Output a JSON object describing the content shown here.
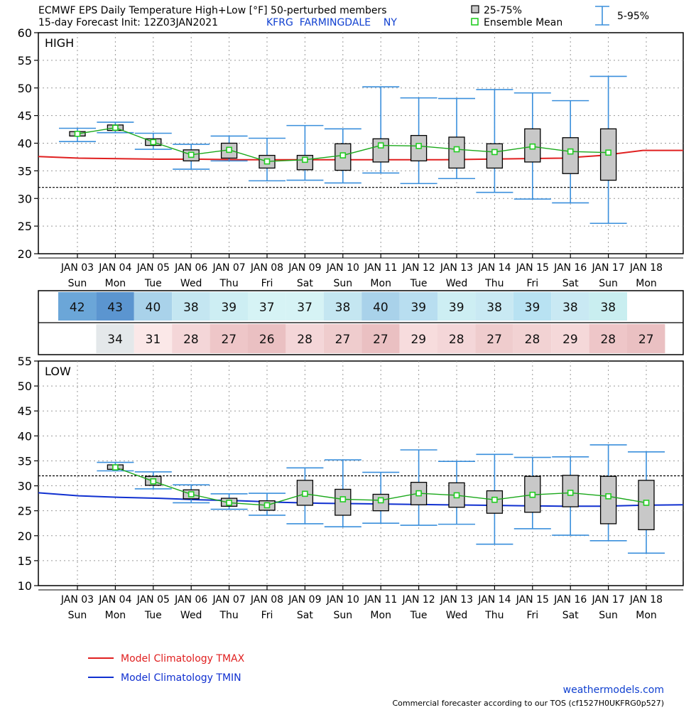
{
  "header": {
    "title": "ECMWF EPS Daily Temperature High+Low [°F]  50-perturbed members",
    "init": "15-day Forecast Init: 12Z03JAN2021",
    "station": "KFRG  FARMINGDALE    NY",
    "legend_box": "25-75%",
    "legend_mean": "Ensemble Mean",
    "legend_whisker": "5-95%"
  },
  "chart_data": [
    {
      "type": "box",
      "label": "HIGH",
      "ylim": [
        20,
        60
      ],
      "yticks": [
        20,
        25,
        30,
        35,
        40,
        45,
        50,
        55,
        60
      ],
      "freezing_line": 32,
      "dates": [
        "JAN 03",
        "JAN 04",
        "JAN 05",
        "JAN 06",
        "JAN 07",
        "JAN 08",
        "JAN 09",
        "JAN 10",
        "JAN 11",
        "JAN 12",
        "JAN 13",
        "JAN 14",
        "JAN 15",
        "JAN 16",
        "JAN 17",
        "JAN 18"
      ],
      "days": [
        "Sun",
        "Mon",
        "Tue",
        "Wed",
        "Thu",
        "Fri",
        "Sat",
        "Sun",
        "Mon",
        "Tue",
        "Wed",
        "Thu",
        "Fri",
        "Sat",
        "Sun",
        "Mon"
      ],
      "members": [
        {
          "p5": 40.3,
          "q1": 41.3,
          "mean": 41.7,
          "q3": 42.1,
          "p95": 42.7
        },
        {
          "p5": 41.9,
          "q1": 42.3,
          "mean": 42.8,
          "q3": 43.3,
          "p95": 43.8
        },
        {
          "p5": 38.9,
          "q1": 39.6,
          "mean": 40.2,
          "q3": 40.8,
          "p95": 41.8
        },
        {
          "p5": 35.3,
          "q1": 36.8,
          "mean": 37.9,
          "q3": 38.8,
          "p95": 39.8
        },
        {
          "p5": 36.8,
          "q1": 37.3,
          "mean": 38.8,
          "q3": 40.0,
          "p95": 41.3
        },
        {
          "p5": 33.2,
          "q1": 35.5,
          "mean": 36.7,
          "q3": 37.8,
          "p95": 40.9
        },
        {
          "p5": 33.3,
          "q1": 35.2,
          "mean": 37.0,
          "q3": 37.8,
          "p95": 43.2
        },
        {
          "p5": 32.8,
          "q1": 35.1,
          "mean": 37.8,
          "q3": 39.9,
          "p95": 42.6
        },
        {
          "p5": 34.6,
          "q1": 36.6,
          "mean": 39.6,
          "q3": 40.8,
          "p95": 50.2
        },
        {
          "p5": 32.7,
          "q1": 36.8,
          "mean": 39.5,
          "q3": 41.4,
          "p95": 48.2
        },
        {
          "p5": 33.6,
          "q1": 35.5,
          "mean": 38.9,
          "q3": 41.1,
          "p95": 48.1
        },
        {
          "p5": 31.1,
          "q1": 35.5,
          "mean": 38.4,
          "q3": 39.9,
          "p95": 49.7
        },
        {
          "p5": 29.9,
          "q1": 36.6,
          "mean": 39.4,
          "q3": 42.6,
          "p95": 49.1
        },
        {
          "p5": 29.2,
          "q1": 34.5,
          "mean": 38.5,
          "q3": 41.0,
          "p95": 47.7
        },
        {
          "p5": 25.5,
          "q1": 33.3,
          "mean": 38.3,
          "q3": 42.6,
          "p95": 52.1
        }
      ],
      "climatology": {
        "name": "Model Climatology TMAX",
        "color": "#e02020",
        "values": [
          37.6,
          37.3,
          37.2,
          37.1,
          37.1,
          37.0,
          37.0,
          37.0,
          37.0,
          37.0,
          37.0,
          37.1,
          37.2,
          37.3,
          37.8,
          38.7,
          38.7
        ]
      }
    },
    {
      "type": "box",
      "label": "LOW",
      "ylim": [
        10,
        55
      ],
      "yticks": [
        10,
        15,
        20,
        25,
        30,
        35,
        40,
        45,
        50,
        55
      ],
      "freezing_line": 32,
      "dates": [
        "JAN 03",
        "JAN 04",
        "JAN 05",
        "JAN 06",
        "JAN 07",
        "JAN 08",
        "JAN 09",
        "JAN 10",
        "JAN 11",
        "JAN 12",
        "JAN 13",
        "JAN 14",
        "JAN 15",
        "JAN 16",
        "JAN 17",
        "JAN 18"
      ],
      "days": [
        "Sun",
        "Mon",
        "Tue",
        "Wed",
        "Thu",
        "Fri",
        "Sat",
        "Sun",
        "Mon",
        "Tue",
        "Wed",
        "Thu",
        "Fri",
        "Sat",
        "Sun",
        "Mon"
      ],
      "members": [
        null,
        {
          "p5": 33.0,
          "q1": 33.3,
          "mean": 33.7,
          "q3": 34.2,
          "p95": 34.7
        },
        {
          "p5": 29.4,
          "q1": 30.1,
          "mean": 30.9,
          "q3": 31.9,
          "p95": 32.8
        },
        {
          "p5": 26.6,
          "q1": 27.4,
          "mean": 28.3,
          "q3": 29.2,
          "p95": 30.2
        },
        {
          "p5": 25.3,
          "q1": 25.9,
          "mean": 26.6,
          "q3": 27.5,
          "p95": 28.4
        },
        {
          "p5": 24.1,
          "q1": 25.1,
          "mean": 26.1,
          "q3": 27.0,
          "p95": 28.5
        },
        {
          "p5": 22.4,
          "q1": 26.1,
          "mean": 28.4,
          "q3": 31.1,
          "p95": 33.6
        },
        {
          "p5": 21.8,
          "q1": 24.1,
          "mean": 27.3,
          "q3": 29.3,
          "p95": 35.2
        },
        {
          "p5": 22.5,
          "q1": 25.0,
          "mean": 27.1,
          "q3": 28.3,
          "p95": 32.7
        },
        {
          "p5": 22.1,
          "q1": 26.2,
          "mean": 28.5,
          "q3": 30.7,
          "p95": 37.2
        },
        {
          "p5": 22.3,
          "q1": 25.7,
          "mean": 28.1,
          "q3": 30.6,
          "p95": 34.9
        },
        {
          "p5": 18.3,
          "q1": 24.5,
          "mean": 27.2,
          "q3": 29.0,
          "p95": 36.3
        },
        {
          "p5": 21.4,
          "q1": 24.7,
          "mean": 28.2,
          "q3": 31.9,
          "p95": 35.7
        },
        {
          "p5": 20.1,
          "q1": 25.8,
          "mean": 28.6,
          "q3": 32.1,
          "p95": 35.8
        },
        {
          "p5": 19.0,
          "q1": 22.4,
          "mean": 27.9,
          "q3": 31.9,
          "p95": 38.2
        },
        {
          "p5": 16.5,
          "q1": 21.2,
          "mean": 26.6,
          "q3": 31.1,
          "p95": 36.8
        }
      ],
      "climatology": {
        "name": "Model Climatology TMIN",
        "color": "#1030d0",
        "values": [
          28.6,
          28.0,
          27.7,
          27.5,
          27.2,
          27.0,
          26.7,
          26.5,
          26.4,
          26.3,
          26.2,
          26.1,
          26.0,
          25.9,
          25.9,
          26.1,
          26.2
        ]
      }
    }
  ],
  "table": {
    "high": [
      "42",
      "43",
      "40",
      "38",
      "39",
      "37",
      "37",
      "38",
      "40",
      "39",
      "39",
      "38",
      "39",
      "38",
      "38",
      ""
    ],
    "high_colors": [
      "#6ba6d8",
      "#5b95d0",
      "#a9d2ea",
      "#c4e6f1",
      "#cdeef3",
      "#d6f3f5",
      "#d6f3f5",
      "#c4e6f1",
      "#a9d2ea",
      "#b8def0",
      "#cdeef3",
      "#c9e9f3",
      "#b8e2f2",
      "#c9e9f3",
      "#c9eef0",
      "#ffffff"
    ],
    "low": [
      "",
      "34",
      "31",
      "28",
      "27",
      "26",
      "28",
      "27",
      "27",
      "29",
      "28",
      "27",
      "28",
      "29",
      "28",
      "27"
    ],
    "low_colors": [
      "#ffffff",
      "#e4e8ea",
      "#fbe8e8",
      "#f4d6d8",
      "#eec6c8",
      "#eac0c2",
      "#f4d6d8",
      "#efcccd",
      "#eac0c2",
      "#f7dcdd",
      "#f4d6d8",
      "#efcccd",
      "#f2d2d3",
      "#f5d8d9",
      "#eec6c8",
      "#eac0c2"
    ]
  },
  "footer": {
    "site": "weathermodels.com",
    "tos": "Commercial forecaster according to our TOS (cf1527H0UKFRG0p527)"
  },
  "colors": {
    "box_fill": "#c8c8c8",
    "whisker": "#3a8fdc",
    "mean": "#1aa81a",
    "mean_marker": "#22cc22"
  }
}
